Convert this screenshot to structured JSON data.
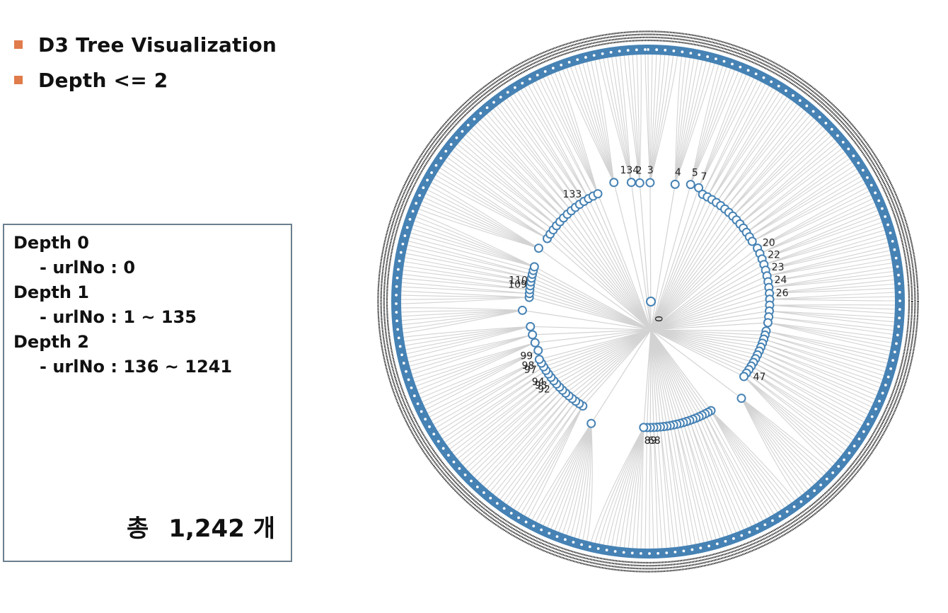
{
  "bullets": [
    {
      "text": "D3 Tree Visualization"
    },
    {
      "text": "Depth <= 2"
    }
  ],
  "info": {
    "rows": [
      {
        "head": "Depth 0",
        "sub": "- urlNo : 0"
      },
      {
        "head": "Depth 1",
        "sub": "- urlNo : 1 ~ 135"
      },
      {
        "head": "Depth 2",
        "sub": "- urlNo : 136 ~ 1241"
      }
    ],
    "total_label": "총",
    "total_value": "1,242 개"
  },
  "colors": {
    "bullet": "#e07b4b",
    "node_stroke": "#4682b4",
    "link": "#d3d3d3",
    "label": "#222222"
  },
  "tree": {
    "root_label": "0",
    "depth1_labels": [
      "134",
      "2",
      "3",
      "4",
      "5",
      "7",
      "20",
      "22",
      "23",
      "24",
      "26",
      "47",
      "68",
      "89",
      "92",
      "93",
      "94",
      "97",
      "98",
      "99",
      "109",
      "110",
      "133"
    ],
    "depth2_count": 1106
  }
}
